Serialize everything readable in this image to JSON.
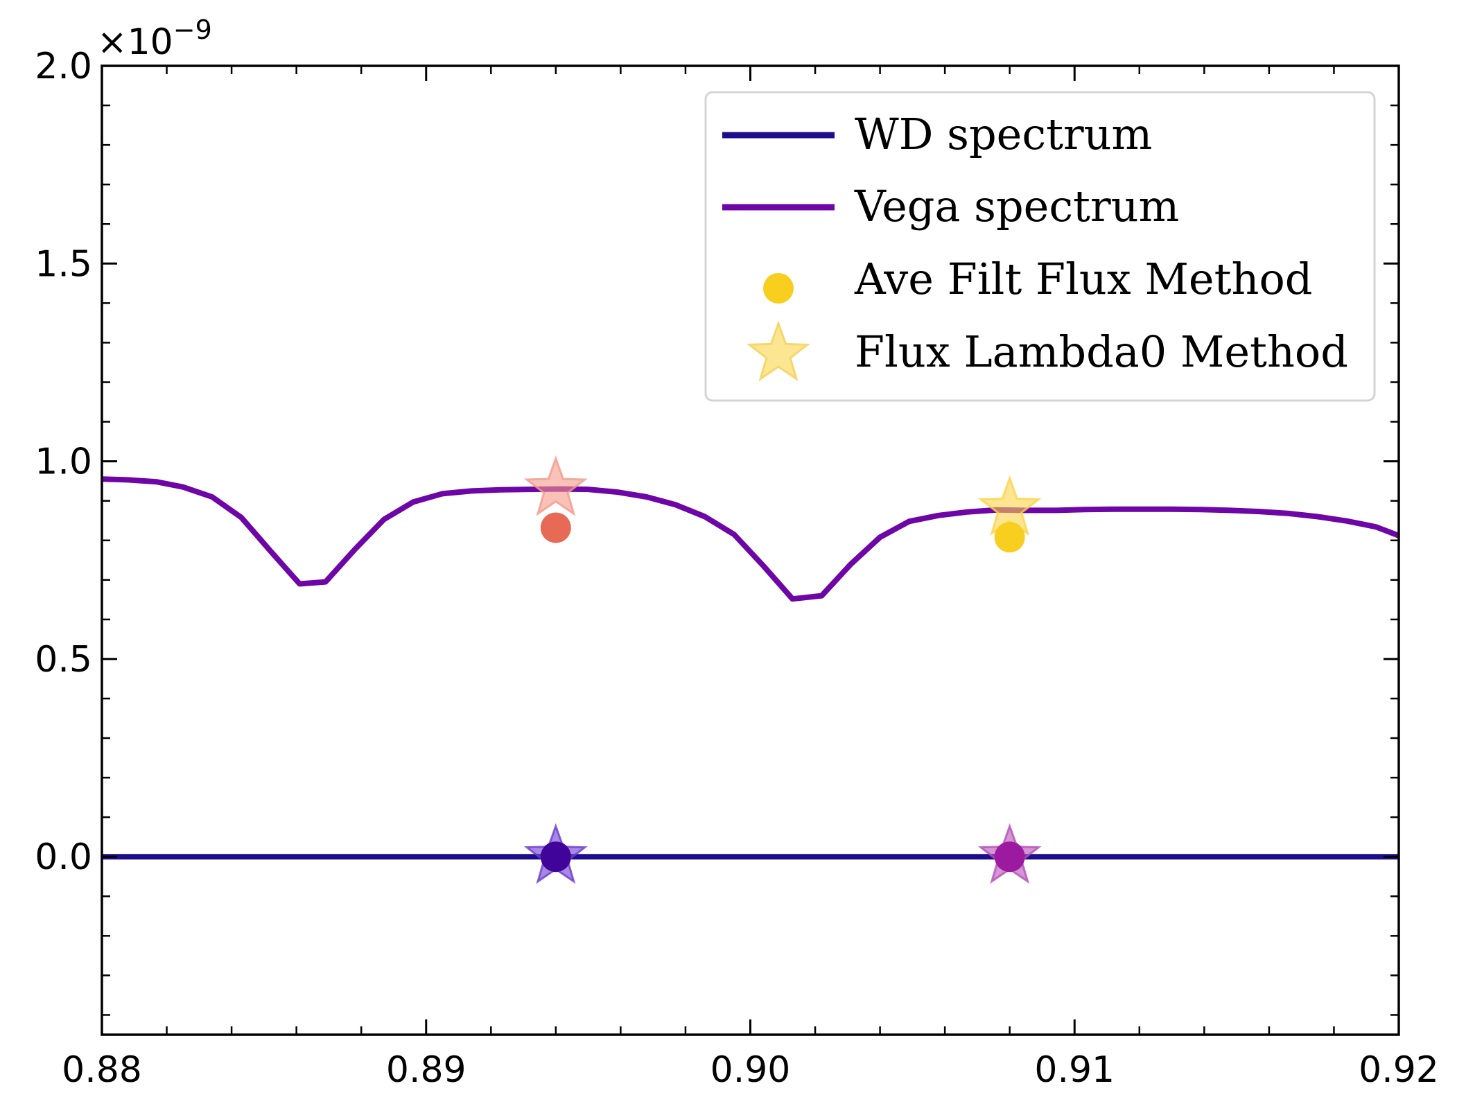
{
  "chart_data": {
    "type": "line",
    "title": "",
    "xlabel": "",
    "ylabel": "",
    "xlim": [
      0.88,
      0.92
    ],
    "ylim": [
      -0.45,
      2.0
    ],
    "y_offset_label_base": "×10",
    "y_offset_label_exp": "−9",
    "grid": false,
    "legend_position": "top-right",
    "x_ticks": [
      {
        "value": 0.88,
        "label": "0.88"
      },
      {
        "value": 0.89,
        "label": "0.89"
      },
      {
        "value": 0.9,
        "label": "0.90"
      },
      {
        "value": 0.91,
        "label": "0.91"
      },
      {
        "value": 0.92,
        "label": "0.92"
      }
    ],
    "y_ticks": [
      {
        "value": 0.0,
        "label": "0.0"
      },
      {
        "value": 0.5,
        "label": "0.5"
      },
      {
        "value": 1.0,
        "label": "1.0"
      },
      {
        "value": 1.5,
        "label": "1.5"
      },
      {
        "value": 2.0,
        "label": "2.0"
      }
    ],
    "series": [
      {
        "name": "WD spectrum",
        "kind": "line",
        "color": "#1c0d8c",
        "x": [
          0.88,
          0.92
        ],
        "y": [
          0.0,
          0.0
        ]
      },
      {
        "name": "Vega spectrum",
        "kind": "line",
        "color": "#6e05a6",
        "x": [
          0.88,
          0.8808,
          0.8817,
          0.8825,
          0.8834,
          0.8843,
          0.8852,
          0.8861,
          0.8869,
          0.8878,
          0.8887,
          0.8896,
          0.8905,
          0.8914,
          0.8923,
          0.8932,
          0.8941,
          0.895,
          0.8959,
          0.8968,
          0.8977,
          0.8986,
          0.8995,
          0.9004,
          0.9013,
          0.9022,
          0.9031,
          0.904,
          0.9049,
          0.9058,
          0.9067,
          0.9076,
          0.9085,
          0.9094,
          0.9103,
          0.9112,
          0.9121,
          0.913,
          0.9139,
          0.9148,
          0.9157,
          0.9166,
          0.9175,
          0.9184,
          0.9193,
          0.92
        ],
        "y": [
          0.955,
          0.953,
          0.948,
          0.935,
          0.91,
          0.858,
          0.773,
          0.69,
          0.695,
          0.777,
          0.853,
          0.897,
          0.918,
          0.925,
          0.928,
          0.929,
          0.93,
          0.929,
          0.922,
          0.91,
          0.89,
          0.86,
          0.815,
          0.736,
          0.652,
          0.66,
          0.74,
          0.808,
          0.848,
          0.863,
          0.872,
          0.877,
          0.876,
          0.876,
          0.878,
          0.879,
          0.879,
          0.879,
          0.878,
          0.876,
          0.873,
          0.868,
          0.86,
          0.849,
          0.834,
          0.812
        ]
      },
      {
        "name": "Ave Filt Flux Method",
        "kind": "scatter-circle",
        "color": "#f8cf1e",
        "points": [
          {
            "x": 0.894,
            "y": 0.832,
            "color": "#e76a55",
            "opacity": 1.0
          },
          {
            "x": 0.908,
            "y": 0.808,
            "color": "#f8cf1e",
            "opacity": 1.0
          },
          {
            "x": 0.894,
            "y": 0.0,
            "color": "#40049b",
            "opacity": 1.0
          },
          {
            "x": 0.908,
            "y": 0.0,
            "color": "#9c1a9f",
            "opacity": 1.0
          }
        ]
      },
      {
        "name": "Flux Lambda0 Method",
        "kind": "scatter-star",
        "color": "#fbe27e",
        "points": [
          {
            "x": 0.894,
            "y": 0.93,
            "color": "#f39a8b",
            "opacity": 0.6
          },
          {
            "x": 0.908,
            "y": 0.88,
            "color": "#fbd44a",
            "opacity": 0.6
          },
          {
            "x": 0.894,
            "y": 0.0,
            "color": "#6d3bd1",
            "opacity": 0.6
          },
          {
            "x": 0.908,
            "y": 0.0,
            "color": "#b54fb8",
            "opacity": 0.6
          }
        ]
      }
    ]
  }
}
